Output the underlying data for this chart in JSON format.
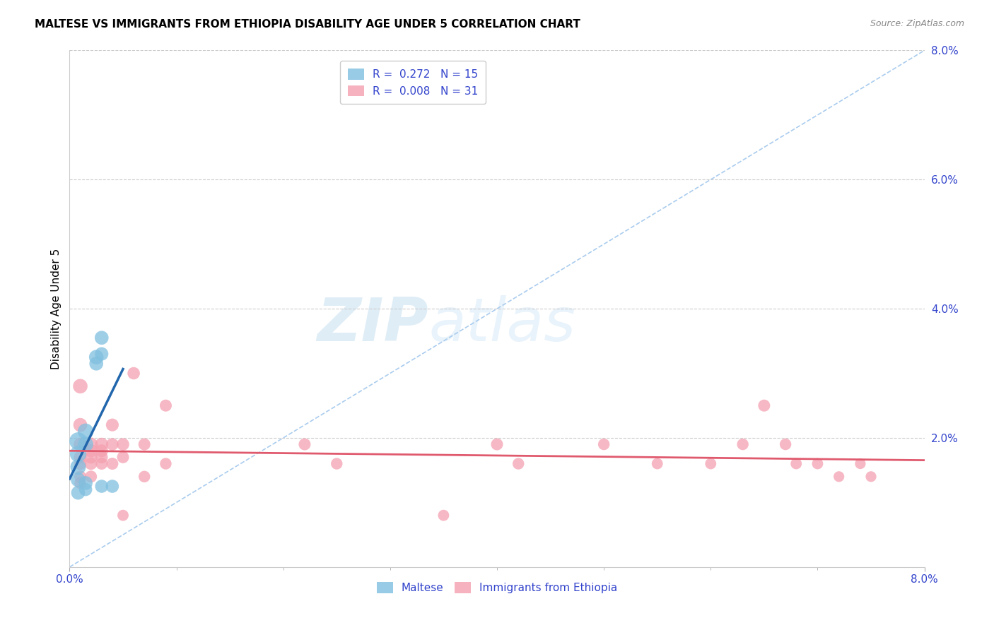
{
  "title": "MALTESE VS IMMIGRANTS FROM ETHIOPIA DISABILITY AGE UNDER 5 CORRELATION CHART",
  "source": "Source: ZipAtlas.com",
  "ylabel": "Disability Age Under 5",
  "xlim": [
    0.0,
    0.08
  ],
  "ylim": [
    0.0,
    0.08
  ],
  "maltese_color": "#7fbfdf",
  "ethiopia_color": "#f4a0b0",
  "trendline_color_blue": "#2166ac",
  "trendline_color_pink": "#e05a6e",
  "diagonal_color": "#aaccee",
  "watermark_zip": "ZIP",
  "watermark_atlas": "atlas",
  "maltese_points": [
    [
      0.0008,
      0.0195
    ],
    [
      0.0008,
      0.0175
    ],
    [
      0.0008,
      0.0155
    ],
    [
      0.0008,
      0.0135
    ],
    [
      0.0008,
      0.0115
    ],
    [
      0.0015,
      0.021
    ],
    [
      0.0015,
      0.019
    ],
    [
      0.0015,
      0.013
    ],
    [
      0.0015,
      0.012
    ],
    [
      0.0025,
      0.0325
    ],
    [
      0.0025,
      0.0315
    ],
    [
      0.003,
      0.0355
    ],
    [
      0.003,
      0.033
    ],
    [
      0.003,
      0.0125
    ],
    [
      0.004,
      0.0125
    ]
  ],
  "ethiopia_points": [
    [
      0.001,
      0.028
    ],
    [
      0.001,
      0.022
    ],
    [
      0.001,
      0.019
    ],
    [
      0.001,
      0.017
    ],
    [
      0.001,
      0.016
    ],
    [
      0.001,
      0.014
    ],
    [
      0.001,
      0.013
    ],
    [
      0.002,
      0.019
    ],
    [
      0.002,
      0.018
    ],
    [
      0.002,
      0.017
    ],
    [
      0.002,
      0.016
    ],
    [
      0.002,
      0.014
    ],
    [
      0.003,
      0.019
    ],
    [
      0.003,
      0.018
    ],
    [
      0.003,
      0.017
    ],
    [
      0.003,
      0.016
    ],
    [
      0.004,
      0.022
    ],
    [
      0.004,
      0.019
    ],
    [
      0.004,
      0.016
    ],
    [
      0.005,
      0.019
    ],
    [
      0.005,
      0.017
    ],
    [
      0.005,
      0.008
    ],
    [
      0.006,
      0.03
    ],
    [
      0.007,
      0.019
    ],
    [
      0.007,
      0.014
    ],
    [
      0.009,
      0.025
    ],
    [
      0.009,
      0.016
    ],
    [
      0.022,
      0.019
    ],
    [
      0.025,
      0.016
    ],
    [
      0.035,
      0.008
    ],
    [
      0.04,
      0.019
    ],
    [
      0.042,
      0.016
    ],
    [
      0.05,
      0.019
    ],
    [
      0.055,
      0.016
    ],
    [
      0.06,
      0.016
    ],
    [
      0.063,
      0.019
    ],
    [
      0.065,
      0.025
    ],
    [
      0.067,
      0.019
    ],
    [
      0.068,
      0.016
    ],
    [
      0.07,
      0.016
    ],
    [
      0.072,
      0.014
    ],
    [
      0.074,
      0.016
    ],
    [
      0.075,
      0.014
    ]
  ],
  "maltese_sizes": [
    320,
    280,
    250,
    220,
    200,
    260,
    240,
    200,
    180,
    220,
    200,
    200,
    190,
    180,
    180
  ],
  "ethiopia_sizes": [
    220,
    200,
    180,
    170,
    160,
    150,
    140,
    190,
    180,
    170,
    160,
    150,
    180,
    170,
    160,
    150,
    170,
    160,
    150,
    160,
    150,
    130,
    160,
    150,
    140,
    150,
    140,
    150,
    140,
    130,
    150,
    140,
    140,
    130,
    130,
    140,
    150,
    140,
    130,
    130,
    120,
    120,
    120
  ]
}
